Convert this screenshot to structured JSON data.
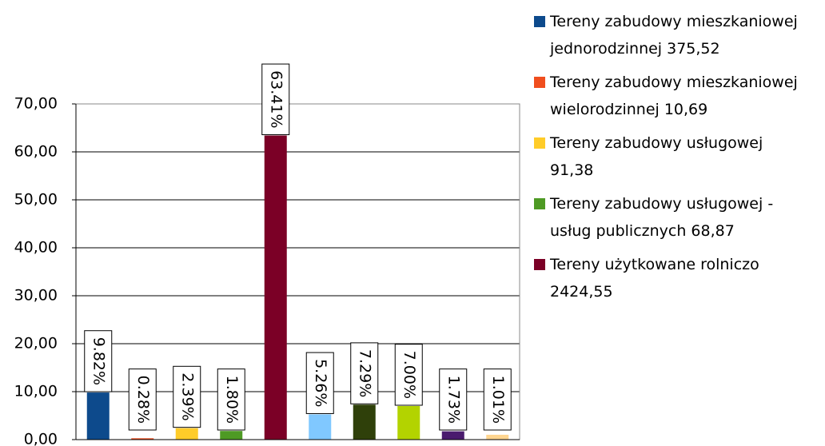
{
  "chart_data": {
    "type": "bar",
    "categories": [
      "Tereny zabudowy mieszkaniowej jednorodzinnej 375,52",
      "Tereny zabudowy mieszkaniowej wielorodzinnej 10,69",
      "Tereny zabudowy usługowej 91,38",
      "Tereny zabudowy usługowej - usług publicznych 68,87",
      "Tereny użytkowane rolniczo 2424,55",
      null,
      null,
      null,
      null,
      null
    ],
    "values": [
      9.82,
      0.28,
      2.39,
      1.8,
      63.41,
      5.26,
      7.29,
      7.0,
      1.73,
      1.01
    ],
    "value_labels": [
      "9.82%",
      "0.28%",
      "2.39%",
      "1.80%",
      "63.41%",
      "5.26%",
      "7.29%",
      "7.00%",
      "1.73%",
      "1.01%"
    ],
    "colors": [
      "#0d4a8c",
      "#f04e1e",
      "#ffcc29",
      "#4e9a24",
      "#7b0026",
      "#80c8ff",
      "#2f400a",
      "#b3d300",
      "#4a1b6e",
      "#ffd590"
    ],
    "ylim": [
      0,
      70
    ],
    "yticks": [
      {
        "value": 0,
        "label": "0,00"
      },
      {
        "value": 10,
        "label": "10,00"
      },
      {
        "value": 20,
        "label": "20,00"
      },
      {
        "value": 30,
        "label": "30,00"
      },
      {
        "value": 40,
        "label": "40,00"
      },
      {
        "value": 50,
        "label": "50,00"
      },
      {
        "value": 60,
        "label": "60,00"
      },
      {
        "value": 70,
        "label": "70,00"
      }
    ],
    "grid": true,
    "legend": "right"
  }
}
